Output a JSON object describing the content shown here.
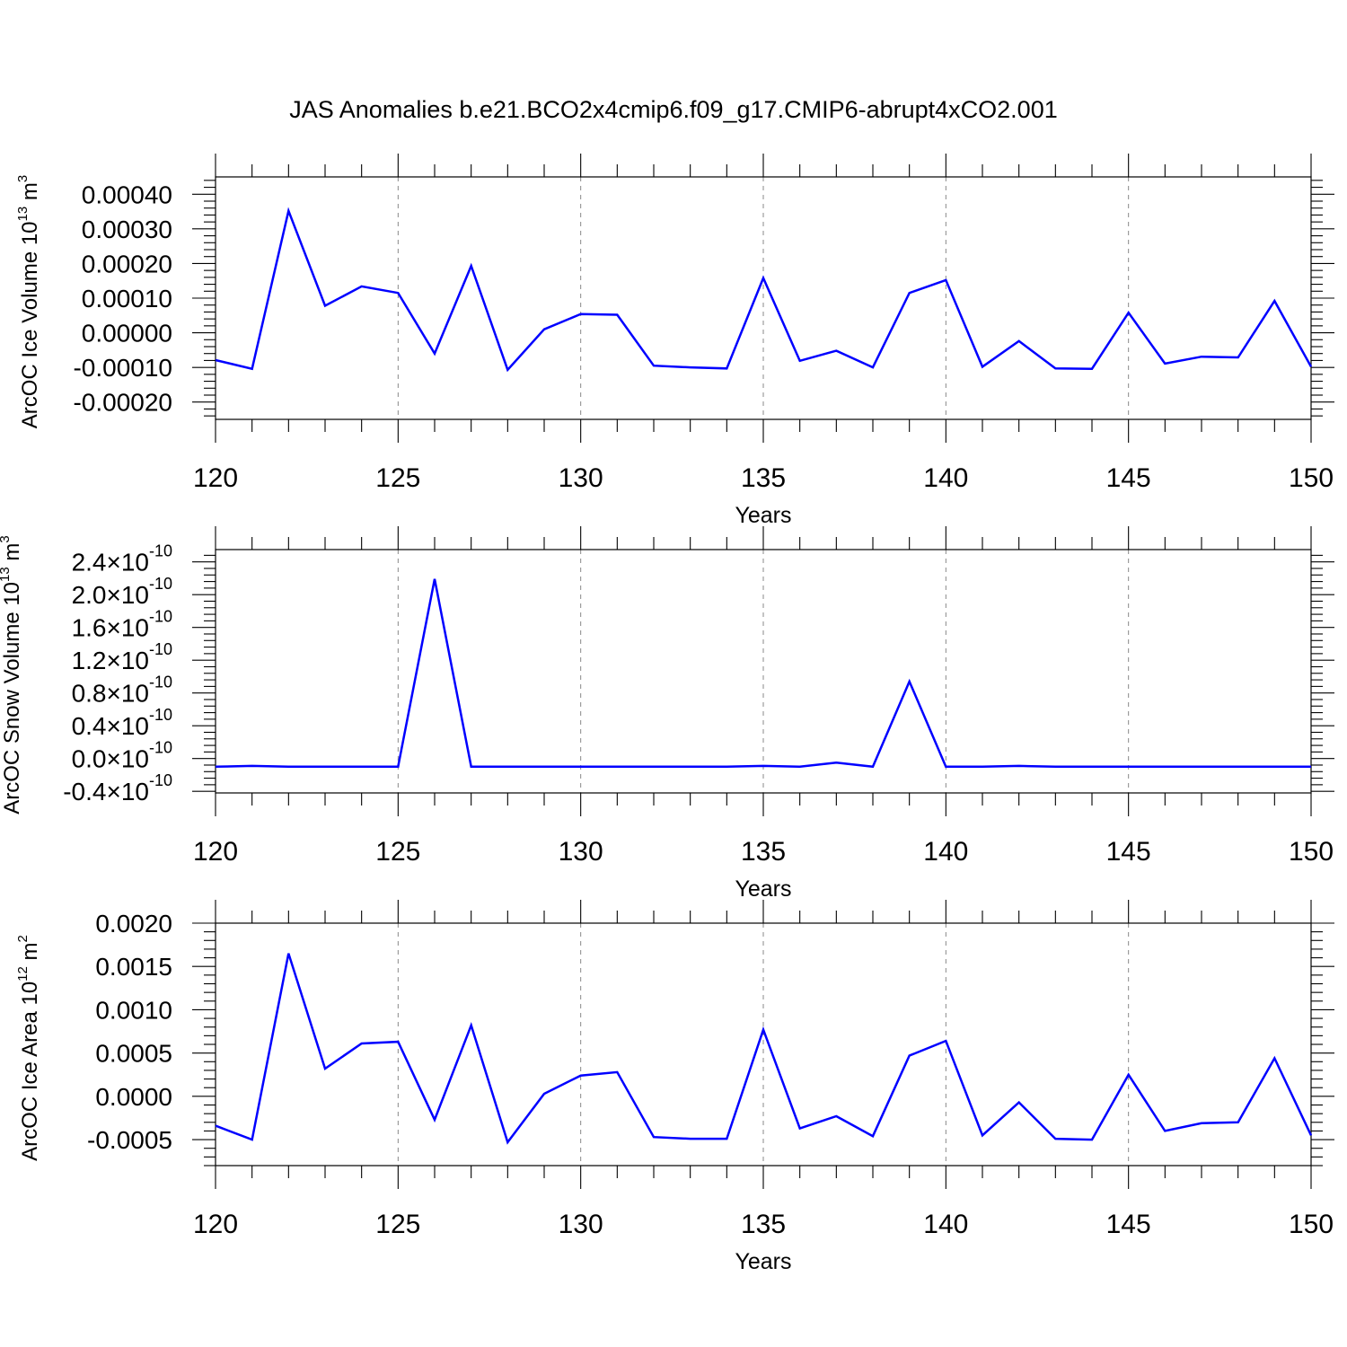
{
  "figure": {
    "title": "JAS Anomalies b.e21.BCO2x4cmip6.f09_g17.CMIP6-abrupt4xCO2.001"
  },
  "chart_data": [
    {
      "type": "line",
      "xlabel": "Years",
      "ylabel": "ArcOC Ice Volume 10",
      "ylabel_exp": "13",
      "ylabel_unit": " m",
      "ylabel_unit_exp": "3",
      "xlim": [
        120,
        150
      ],
      "ylim": [
        -0.00025,
        0.00045
      ],
      "grid": "vertical-dashed",
      "color": "#0000ff",
      "x_ticks": [
        120,
        125,
        130,
        135,
        140,
        145,
        150
      ],
      "x_tick_labels": [
        "120",
        "125",
        "130",
        "135",
        "140",
        "145",
        "150"
      ],
      "y_ticks": [
        -0.0002,
        -0.0001,
        0.0,
        0.0001,
        0.0002,
        0.0003,
        0.0004
      ],
      "y_tick_labels": [
        "-0.00020",
        "-0.00010",
        "0.00000",
        "0.00010",
        "0.00020",
        "0.00030",
        "0.00040"
      ],
      "x": [
        120,
        121,
        122,
        123,
        124,
        125,
        126,
        127,
        128,
        129,
        130,
        131,
        132,
        133,
        134,
        135,
        136,
        137,
        138,
        139,
        140,
        141,
        142,
        143,
        144,
        145,
        146,
        147,
        148,
        149,
        150
      ],
      "series": [
        {
          "values": [
            -7.9e-05,
            -0.000104,
            0.000352,
            7.8e-05,
            0.000134,
            0.000115,
            -6e-05,
            0.000193,
            -0.000107,
            1e-05,
            5.4e-05,
            5.2e-05,
            -9.5e-05,
            -0.0001,
            -0.000103,
            0.000158,
            -8.1e-05,
            -5.2e-05,
            -0.0001,
            0.000115,
            0.000152,
            -9.8e-05,
            -2.4e-05,
            -0.000103,
            -0.000104,
            5.8e-05,
            -8.9e-05,
            -6.9e-05,
            -7.1e-05,
            9.2e-05,
            -9.8e-05
          ]
        }
      ]
    },
    {
      "type": "line",
      "xlabel": "Years",
      "ylabel": "ArcOC Snow Volume 10",
      "ylabel_exp": "13",
      "ylabel_unit": " m",
      "ylabel_unit_exp": "3",
      "xlim": [
        120,
        150
      ],
      "ylim": [
        -4.2e-11,
        2.55e-10
      ],
      "grid": "vertical-dashed",
      "color": "#0000ff",
      "x_ticks": [
        120,
        125,
        130,
        135,
        140,
        145,
        150
      ],
      "x_tick_labels": [
        "120",
        "125",
        "130",
        "135",
        "140",
        "145",
        "150"
      ],
      "y_ticks": [
        -4e-11,
        0,
        4e-11,
        8e-11,
        1.2e-10,
        1.6e-10,
        2e-10,
        2.4e-10
      ],
      "y_tick_mantissas": [
        "-0.4",
        "0.0",
        "0.4",
        "0.8",
        "1.2",
        "1.6",
        "2.0",
        "2.4"
      ],
      "y_tick_times": "×10",
      "y_tick_exponent": "-10",
      "x": [
        120,
        121,
        122,
        123,
        124,
        125,
        126,
        127,
        128,
        129,
        130,
        131,
        132,
        133,
        134,
        135,
        136,
        137,
        138,
        139,
        140,
        141,
        142,
        143,
        144,
        145,
        146,
        147,
        148,
        149,
        150
      ],
      "series": [
        {
          "values": [
            -1e-11,
            -9e-12,
            -1e-11,
            -1e-11,
            -1e-11,
            -1e-11,
            2.19e-10,
            -1e-11,
            -1e-11,
            -1e-11,
            -1e-11,
            -1e-11,
            -1e-11,
            -1e-11,
            -1e-11,
            -9e-12,
            -1e-11,
            -5e-12,
            -1e-11,
            9.4e-11,
            -1e-11,
            -1e-11,
            -9e-12,
            -1e-11,
            -1e-11,
            -1e-11,
            -1e-11,
            -1e-11,
            -1e-11,
            -1e-11,
            -1e-11
          ]
        }
      ]
    },
    {
      "type": "line",
      "xlabel": "Years",
      "ylabel": "ArcOC Ice Area 10",
      "ylabel_exp": "12",
      "ylabel_unit": " m",
      "ylabel_unit_exp": "2",
      "xlim": [
        120,
        150
      ],
      "ylim": [
        -0.0008,
        0.002
      ],
      "grid": "vertical-dashed",
      "color": "#0000ff",
      "x_ticks": [
        120,
        125,
        130,
        135,
        140,
        145,
        150
      ],
      "x_tick_labels": [
        "120",
        "125",
        "130",
        "135",
        "140",
        "145",
        "150"
      ],
      "y_ticks": [
        -0.0005,
        0.0,
        0.0005,
        0.001,
        0.0015,
        0.002
      ],
      "y_tick_labels": [
        "-0.0005",
        "0.0000",
        "0.0005",
        "0.0010",
        "0.0015",
        "0.0020"
      ],
      "x": [
        120,
        121,
        122,
        123,
        124,
        125,
        126,
        127,
        128,
        129,
        130,
        131,
        132,
        133,
        134,
        135,
        136,
        137,
        138,
        139,
        140,
        141,
        142,
        143,
        144,
        145,
        146,
        147,
        148,
        149,
        150
      ],
      "series": [
        {
          "values": [
            -0.00034,
            -0.0005,
            0.00165,
            0.00032,
            0.00061,
            0.00063,
            -0.00027,
            0.00082,
            -0.00053,
            3e-05,
            0.00024,
            0.00028,
            -0.00047,
            -0.00049,
            -0.00049,
            0.00077,
            -0.00037,
            -0.00023,
            -0.00046,
            0.00047,
            0.00064,
            -0.00045,
            -7e-05,
            -0.00049,
            -0.0005,
            0.00025,
            -0.0004,
            -0.00031,
            -0.0003,
            0.00044,
            -0.00045
          ]
        }
      ]
    }
  ]
}
